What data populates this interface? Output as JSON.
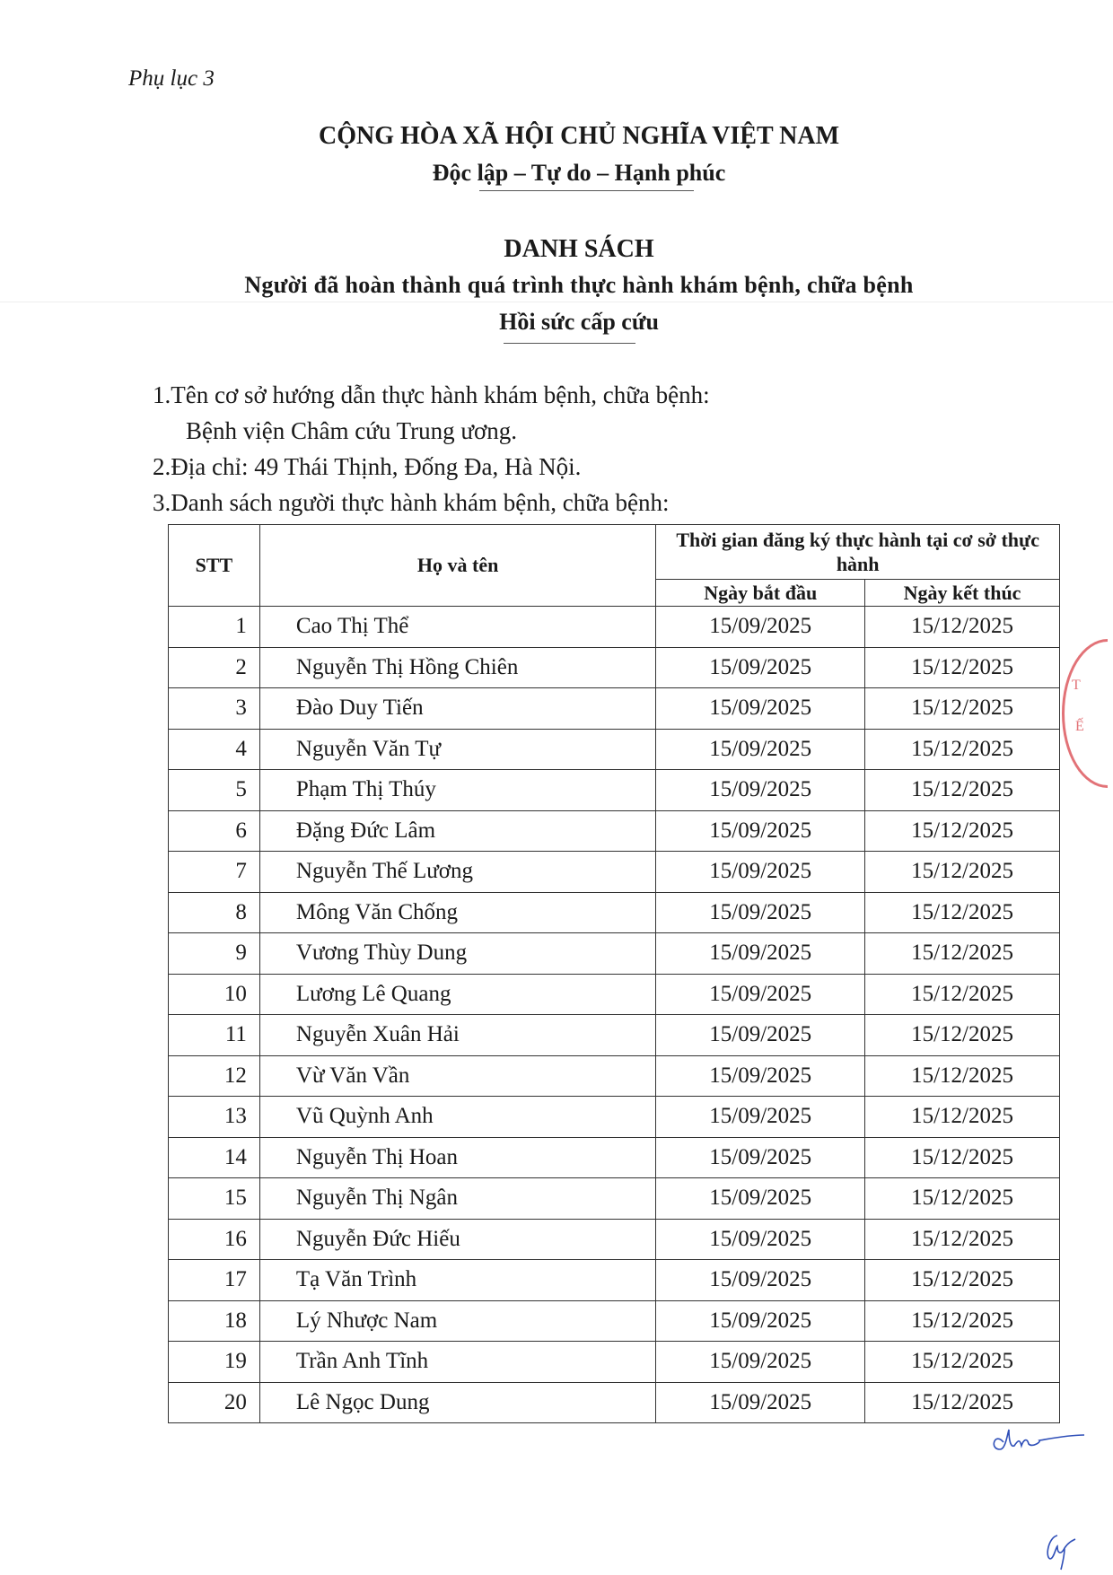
{
  "appendix": "Phụ lục 3",
  "header": {
    "country": "CỘNG HÒA XÃ HỘI CHỦ NGHĨA VIỆT NAM",
    "motto": "Độc lập – Tự do – Hạnh phúc"
  },
  "title": {
    "main": "DANH SÁCH",
    "subtitle": "Người đã hoàn thành quá trình thực hành khám bệnh, chữa bệnh",
    "specialty": "Hồi sức cấp cứu"
  },
  "info": {
    "line1": "1.Tên cơ sở hướng dẫn thực hành khám bệnh, chữa bệnh:",
    "line1b": "Bệnh viện Châm cứu Trung ương.",
    "line2": "2.Địa chỉ: 49 Thái Thịnh, Đống Đa, Hà Nội.",
    "line3": "3.Danh sách người thực hành khám bệnh, chữa bệnh:"
  },
  "table": {
    "headers": {
      "stt": "STT",
      "name": "Họ và tên",
      "period": "Thời gian đăng ký thực hành tại cơ sở thực hành",
      "start": "Ngày bắt đầu",
      "end": "Ngày kết thúc"
    },
    "rows": [
      {
        "stt": "1",
        "name": "Cao Thị Thể",
        "start": "15/09/2025",
        "end": "15/12/2025"
      },
      {
        "stt": "2",
        "name": "Nguyễn Thị Hồng Chiên",
        "start": "15/09/2025",
        "end": "15/12/2025"
      },
      {
        "stt": "3",
        "name": "Đào Duy Tiến",
        "start": "15/09/2025",
        "end": "15/12/2025"
      },
      {
        "stt": "4",
        "name": "Nguyễn Văn Tự",
        "start": "15/09/2025",
        "end": "15/12/2025"
      },
      {
        "stt": "5",
        "name": "Phạm Thị Thúy",
        "start": "15/09/2025",
        "end": "15/12/2025"
      },
      {
        "stt": "6",
        "name": "Đặng Đức Lâm",
        "start": "15/09/2025",
        "end": "15/12/2025"
      },
      {
        "stt": "7",
        "name": "Nguyễn Thế Lương",
        "start": "15/09/2025",
        "end": "15/12/2025"
      },
      {
        "stt": "8",
        "name": "Mông Văn Chống",
        "start": "15/09/2025",
        "end": "15/12/2025"
      },
      {
        "stt": "9",
        "name": "Vương Thùy Dung",
        "start": "15/09/2025",
        "end": "15/12/2025"
      },
      {
        "stt": "10",
        "name": "Lương Lê Quang",
        "start": "15/09/2025",
        "end": "15/12/2025"
      },
      {
        "stt": "11",
        "name": "Nguyễn Xuân Hải",
        "start": "15/09/2025",
        "end": "15/12/2025"
      },
      {
        "stt": "12",
        "name": "Vừ Văn Vần",
        "start": "15/09/2025",
        "end": "15/12/2025"
      },
      {
        "stt": "13",
        "name": "Vũ Quỳnh Anh",
        "start": "15/09/2025",
        "end": "15/12/2025"
      },
      {
        "stt": "14",
        "name": "Nguyễn Thị Hoan",
        "start": "15/09/2025",
        "end": "15/12/2025"
      },
      {
        "stt": "15",
        "name": "Nguyễn Thị Ngân",
        "start": "15/09/2025",
        "end": "15/12/2025"
      },
      {
        "stt": "16",
        "name": "Nguyễn Đức Hiếu",
        "start": "15/09/2025",
        "end": "15/12/2025"
      },
      {
        "stt": "17",
        "name": "Tạ Văn Trình",
        "start": "15/09/2025",
        "end": "15/12/2025"
      },
      {
        "stt": "18",
        "name": "Lý Nhược Nam",
        "start": "15/09/2025",
        "end": "15/12/2025"
      },
      {
        "stt": "19",
        "name": "Trần Anh Tĩnh",
        "start": "15/09/2025",
        "end": "15/12/2025"
      },
      {
        "stt": "20",
        "name": "Lê Ngọc Dung",
        "start": "15/09/2025",
        "end": "15/12/2025"
      }
    ]
  },
  "stamp": {
    "text": "TẾ",
    "color": "#d9434a"
  },
  "signature_color": "#2f4fb8"
}
